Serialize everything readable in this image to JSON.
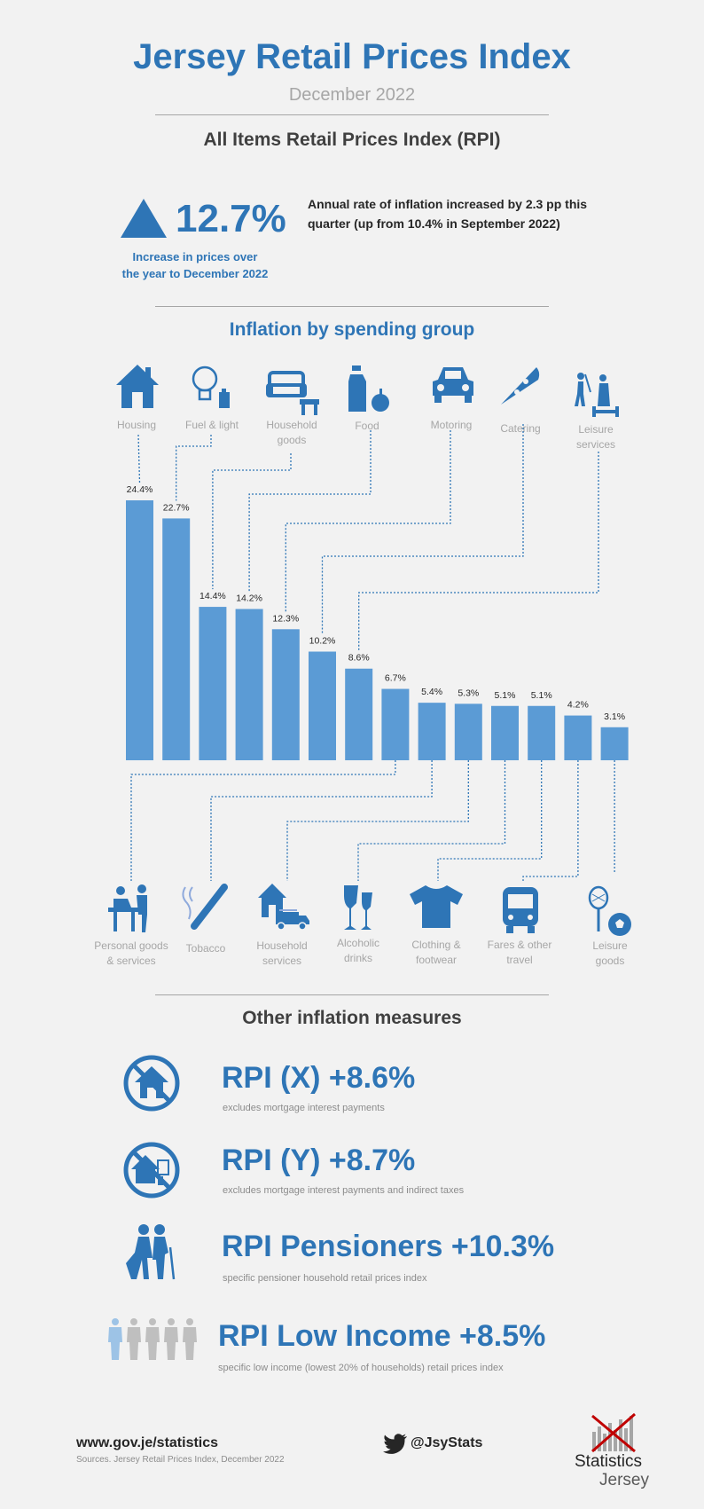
{
  "header": {
    "title": "Jersey Retail Prices Index",
    "subtitle": "December 2022",
    "section_rpi": "All Items Retail Prices Index (RPI)"
  },
  "headline": {
    "value": "12.7%",
    "caption_line1": "Increase in prices over",
    "caption_line2": "the year to December 2022",
    "desc_line1": "Annual rate of inflation increased by 2.3 pp this",
    "desc_line2": "quarter (up from 10.4% in September 2022)",
    "color": "#2e75b6"
  },
  "spending": {
    "heading": "Inflation by spending group",
    "top_labels": [
      {
        "lines": [
          "Housing"
        ],
        "icon": "house-icon"
      },
      {
        "lines": [
          "Fuel & light"
        ],
        "icon": "lightbulb-icon"
      },
      {
        "lines": [
          "Household",
          "goods"
        ],
        "icon": "sofa-icon"
      },
      {
        "lines": [
          "Food"
        ],
        "icon": "food-icon"
      },
      {
        "lines": [
          "Motoring"
        ],
        "icon": "car-icon"
      },
      {
        "lines": [
          "Catering"
        ],
        "icon": "pizza-icon"
      },
      {
        "lines": [
          "Leisure",
          "services"
        ],
        "icon": "leisure-services-icon"
      }
    ],
    "bottom_labels": [
      {
        "lines": [
          "Personal goods",
          "& services"
        ],
        "icon": "personal-services-icon"
      },
      {
        "lines": [
          "Tobacco"
        ],
        "icon": "cigarette-icon"
      },
      {
        "lines": [
          "Household",
          "services"
        ],
        "icon": "house-truck-icon"
      },
      {
        "lines": [
          "Alcoholic",
          "drinks"
        ],
        "icon": "wine-glass-icon"
      },
      {
        "lines": [
          "Clothing &",
          "footwear"
        ],
        "icon": "tshirt-icon"
      },
      {
        "lines": [
          "Fares & other",
          "travel"
        ],
        "icon": "bus-icon"
      },
      {
        "lines": [
          "Leisure",
          "goods"
        ],
        "icon": "sports-ball-icon"
      }
    ]
  },
  "chart_data": {
    "type": "bar",
    "categories": [
      "Housing",
      "Fuel & light",
      "Household goods",
      "Food",
      "Motoring",
      "Catering",
      "Leisure services",
      "Personal goods & services",
      "Tobacco",
      "Household services",
      "Alcoholic drinks",
      "Clothing & footwear",
      "Fares & other travel",
      "Leisure goods"
    ],
    "values": [
      24.4,
      22.7,
      14.4,
      14.2,
      12.3,
      10.2,
      8.6,
      6.7,
      5.4,
      5.3,
      5.1,
      5.1,
      4.2,
      3.1
    ],
    "value_labels": [
      "24.4%",
      "22.7%",
      "14.4%",
      "14.2%",
      "12.3%",
      "10.2%",
      "8.6%",
      "6.7%",
      "5.4%",
      "5.3%",
      "5.1%",
      "5.1%",
      "4.2%",
      "3.1%"
    ],
    "ylim": [
      0,
      24.4
    ],
    "unit": "%",
    "grid": false,
    "bar_color": "#5b9bd5",
    "title": "",
    "xlabel": "",
    "ylabel": ""
  },
  "other": {
    "heading": "Other inflation measures",
    "items": [
      {
        "title": "RPI (X) +8.6%",
        "desc": "excludes mortgage interest payments",
        "icon": "no-mortgage-icon"
      },
      {
        "title": "RPI (Y) +8.7%",
        "desc": "excludes mortgage interest payments and indirect taxes",
        "icon": "no-mortgage-tax-icon"
      },
      {
        "title": "RPI Pensioners +10.3%",
        "desc": "specific pensioner household  retail prices index",
        "icon": "pensioners-icon"
      },
      {
        "title": "RPI Low Income +8.5%",
        "desc": "specific low income (lowest 20% of households)  retail prices index",
        "icon": "people-group-icon"
      }
    ]
  },
  "footer": {
    "website": "www.gov.je/statistics",
    "sources": "Sources. Jersey Retail Prices Index, December 2022",
    "twitter": "@JsyStats",
    "logo_line1": "Statistics",
    "logo_line2": "Jersey"
  }
}
